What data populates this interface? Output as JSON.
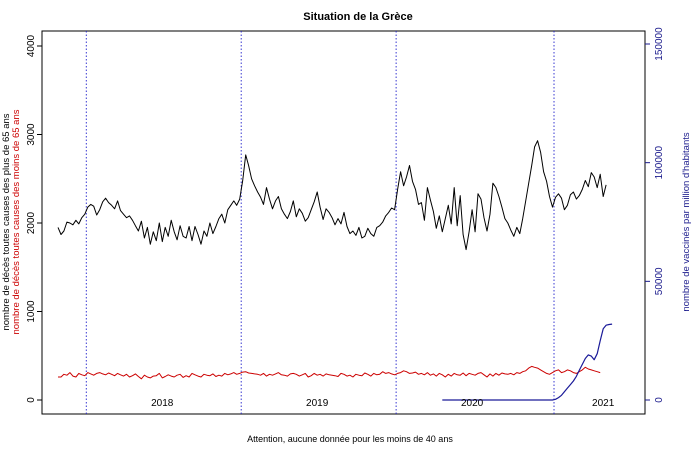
{
  "chart_data": {
    "type": "line",
    "title": "Situation de la Grèce",
    "note": "Attention, aucune donnée pour les moins de 40 ans",
    "ylabel_left_1": "nombre de décès toutes causes des plus de 65 ans",
    "ylabel_left_2": "nombre de décès toutes causes des moins de 65 ans",
    "ylabel_right": "nombre de vaccinés par million d'habitants",
    "yticks_left": [
      "0",
      "1000",
      "2000",
      "3000",
      "4000"
    ],
    "yticks_right": [
      "0",
      "50000",
      "100000",
      "150000"
    ],
    "ylim_left": [
      0,
      4000
    ],
    "ylim_right": [
      0,
      150000
    ],
    "xlim": [
      0,
      192
    ],
    "year_markers": [
      10.5,
      62.5,
      114.5,
      167.5
    ],
    "year_labels": [
      {
        "label": "2018",
        "x": 36
      },
      {
        "label": "2019",
        "x": 88
      },
      {
        "label": "2020",
        "x": 140
      },
      {
        "label": "2021",
        "x": 184
      }
    ],
    "colors": {
      "over65": "#000000",
      "under65": "#cc0000",
      "vaccines": "#1a1a99",
      "year_marker": "#2222cc",
      "right_axis": "#1a1a8c"
    },
    "series": [
      {
        "name": "nombre de décès toutes causes des plus de 65 ans",
        "axis": "left",
        "color": "#000000",
        "values": [
          1950,
          1870,
          1910,
          2010,
          2000,
          1980,
          2030,
          1990,
          2060,
          2100,
          2180,
          2210,
          2190,
          2090,
          2150,
          2240,
          2280,
          2230,
          2200,
          2160,
          2250,
          2140,
          2100,
          2060,
          2080,
          2030,
          1970,
          1910,
          2020,
          1830,
          1950,
          1760,
          1900,
          1800,
          2000,
          1790,
          1950,
          1850,
          2030,
          1900,
          1810,
          1970,
          1850,
          1830,
          1960,
          1800,
          1960,
          1870,
          1760,
          1910,
          1850,
          2000,
          1880,
          1960,
          2050,
          2100,
          2000,
          2150,
          2200,
          2250,
          2200,
          2270,
          2480,
          2770,
          2650,
          2500,
          2420,
          2350,
          2290,
          2210,
          2400,
          2270,
          2160,
          2250,
          2300,
          2160,
          2100,
          2050,
          2130,
          2250,
          2070,
          2160,
          2110,
          2020,
          2060,
          2150,
          2240,
          2350,
          2180,
          2040,
          2160,
          2120,
          2060,
          1980,
          2050,
          1990,
          2120,
          1960,
          1880,
          1910,
          1860,
          1950,
          1830,
          1850,
          1940,
          1880,
          1850,
          1950,
          1970,
          2010,
          2080,
          2120,
          2170,
          2150,
          2380,
          2580,
          2420,
          2520,
          2650,
          2470,
          2380,
          2210,
          2230,
          2030,
          2400,
          2260,
          2130,
          1940,
          2080,
          1900,
          2050,
          2200,
          1990,
          2400,
          1970,
          2310,
          1870,
          1700,
          1900,
          2150,
          1900,
          2330,
          2270,
          2060,
          1910,
          2100,
          2450,
          2400,
          2300,
          2180,
          2050,
          2000,
          1920,
          1850,
          1950,
          1880,
          2050,
          2250,
          2450,
          2650,
          2860,
          2930,
          2800,
          2580,
          2470,
          2300,
          2180,
          2290,
          2330,
          2280,
          2150,
          2200,
          2320,
          2350,
          2270,
          2310,
          2380,
          2480,
          2410,
          2570,
          2520,
          2400,
          2550,
          2300,
          2430
        ],
        "x_start": 1
      },
      {
        "name": "nombre de décès toutes causes des moins de 65 ans",
        "axis": "left",
        "color": "#cc0000",
        "values": [
          260,
          260,
          290,
          280,
          310,
          270,
          260,
          300,
          285,
          275,
          310,
          295,
          280,
          300,
          310,
          295,
          285,
          305,
          290,
          275,
          300,
          285,
          270,
          290,
          260,
          275,
          295,
          265,
          240,
          280,
          260,
          250,
          270,
          275,
          300,
          250,
          265,
          285,
          270,
          260,
          280,
          290,
          255,
          275,
          260,
          300,
          285,
          270,
          260,
          290,
          280,
          275,
          295,
          265,
          280,
          270,
          300,
          285,
          295,
          310,
          290,
          300,
          315,
          320,
          305,
          300,
          295,
          290,
          280,
          300,
          270,
          290,
          280,
          295,
          310,
          285,
          280,
          270,
          295,
          300,
          290,
          270,
          285,
          300,
          260,
          275,
          300,
          280,
          290,
          270,
          295,
          285,
          280,
          275,
          265,
          300,
          290,
          270,
          280,
          260,
          290,
          280,
          275,
          305,
          290,
          270,
          300,
          285,
          290,
          320,
          300,
          310,
          295,
          285,
          300,
          310,
          330,
          320,
          300,
          305,
          315,
          290,
          300,
          285,
          310,
          280,
          295,
          270,
          300,
          285,
          260,
          290,
          270,
          300,
          285,
          280,
          305,
          275,
          300,
          290,
          280,
          300,
          310,
          285,
          260,
          295,
          270,
          300,
          280,
          305,
          295,
          290,
          300,
          285,
          310,
          300,
          320,
          330,
          360,
          380,
          370,
          360,
          340,
          320,
          300,
          290,
          310,
          330,
          340,
          310,
          320,
          340,
          330,
          310,
          300,
          320,
          340,
          370,
          350,
          340,
          330,
          320,
          310
        ],
        "x_start": 1
      },
      {
        "name": "nombre de vaccinés par million d'habitants",
        "axis": "right",
        "color": "#1a1a99",
        "points": [
          [
            130,
            0
          ],
          [
            140,
            0
          ],
          [
            150,
            0
          ],
          [
            160,
            0
          ],
          [
            165,
            0
          ],
          [
            167,
            0
          ],
          [
            168,
            300
          ],
          [
            169,
            1000
          ],
          [
            170,
            2000
          ],
          [
            171,
            3500
          ],
          [
            172,
            5000
          ],
          [
            173,
            6500
          ],
          [
            174,
            8000
          ],
          [
            175,
            10000
          ],
          [
            176,
            12500
          ],
          [
            177,
            15000
          ],
          [
            178,
            17500
          ],
          [
            179,
            19000
          ],
          [
            180,
            18500
          ],
          [
            181,
            17000
          ],
          [
            182,
            19500
          ],
          [
            183,
            25000
          ],
          [
            184,
            30000
          ],
          [
            185,
            31500
          ],
          [
            186,
            31800
          ],
          [
            187,
            32000
          ]
        ]
      }
    ]
  }
}
